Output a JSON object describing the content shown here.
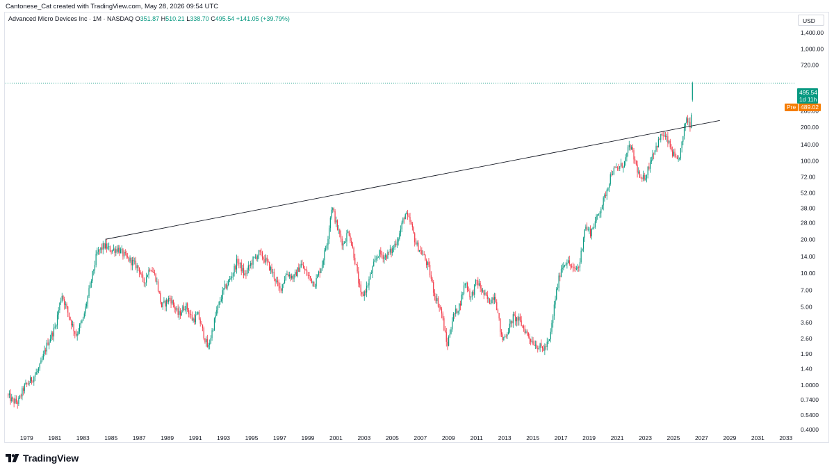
{
  "header": {
    "credit": "Cantonese_Cat created with TradingView.com, May 28, 2026 09:54 UTC",
    "symbol": "Advanced Micro Devices Inc · 1M · NASDAQ",
    "ohlc": {
      "o_label": "O",
      "o_value": "351.87",
      "h_label": "H",
      "h_value": "510.21",
      "l_label": "L",
      "l_value": "338.70",
      "c_label": "C",
      "c_value": "495.54",
      "change": "+141.05 (+39.79%)"
    },
    "currency": "USD"
  },
  "price_tag": {
    "price": "495.54",
    "countdown": "1d 11h"
  },
  "pre_tag": {
    "label": "Pre",
    "price": "489.02"
  },
  "brand": {
    "name": "TradingView"
  },
  "colors": {
    "up": "#089981",
    "down": "#f23645",
    "pre": "#f57c00",
    "trendline": "#131722"
  },
  "chart_data": {
    "type": "candlestick",
    "scale": "log",
    "ylim": [
      0.4,
      2000
    ],
    "xlim": [
      1977.5,
      2033.7
    ],
    "y_ticks": [
      {
        "value": 0.4,
        "label": "0.4000"
      },
      {
        "value": 0.54,
        "label": "0.5400"
      },
      {
        "value": 0.74,
        "label": "0.7400"
      },
      {
        "value": 1.0,
        "label": "1.0000"
      },
      {
        "value": 1.4,
        "label": "1.40"
      },
      {
        "value": 1.9,
        "label": "1.90"
      },
      {
        "value": 2.6,
        "label": "2.60"
      },
      {
        "value": 3.6,
        "label": "3.60"
      },
      {
        "value": 5.0,
        "label": "5.00"
      },
      {
        "value": 7.0,
        "label": "7.00"
      },
      {
        "value": 10,
        "label": "10.00"
      },
      {
        "value": 14,
        "label": "14.00"
      },
      {
        "value": 20,
        "label": "20.00"
      },
      {
        "value": 28,
        "label": "28.00"
      },
      {
        "value": 38,
        "label": "38.00"
      },
      {
        "value": 52,
        "label": "52.00"
      },
      {
        "value": 72,
        "label": "72.00"
      },
      {
        "value": 100,
        "label": "100.00"
      },
      {
        "value": 140,
        "label": "140.00"
      },
      {
        "value": 200,
        "label": "200.00"
      },
      {
        "value": 280,
        "label": "280.00"
      },
      {
        "value": 720,
        "label": "720.00"
      },
      {
        "value": 1000,
        "label": "1,000.00"
      },
      {
        "value": 1400,
        "label": "1,400.00"
      }
    ],
    "x_ticks": [
      "1979",
      "1981",
      "1983",
      "1985",
      "1987",
      "1989",
      "1991",
      "1993",
      "1995",
      "1997",
      "1999",
      "2001",
      "2003",
      "2005",
      "2007",
      "2009",
      "2011",
      "2013",
      "2015",
      "2017",
      "2019",
      "2021",
      "2023",
      "2025",
      "2027",
      "2029",
      "2031",
      "2033"
    ],
    "price_path": [
      [
        1977.6,
        0.82
      ],
      [
        1978.0,
        0.72
      ],
      [
        1978.4,
        0.7
      ],
      [
        1978.8,
        0.95
      ],
      [
        1979.3,
        1.1
      ],
      [
        1979.9,
        1.4
      ],
      [
        1980.5,
        2.4
      ],
      [
        1981.0,
        3.2
      ],
      [
        1981.5,
        6.5
      ],
      [
        1982.0,
        4.2
      ],
      [
        1982.5,
        2.8
      ],
      [
        1983.0,
        3.8
      ],
      [
        1983.5,
        7.5
      ],
      [
        1984.0,
        15.0
      ],
      [
        1984.5,
        17.5
      ],
      [
        1985.0,
        16.0
      ],
      [
        1985.5,
        16.5
      ],
      [
        1986.0,
        14.0
      ],
      [
        1986.5,
        12.5
      ],
      [
        1987.0,
        11.0
      ],
      [
        1987.3,
        8.0
      ],
      [
        1987.8,
        11.5
      ],
      [
        1988.2,
        9.0
      ],
      [
        1988.6,
        5.0
      ],
      [
        1989.2,
        6.0
      ],
      [
        1989.8,
        4.2
      ],
      [
        1990.3,
        5.2
      ],
      [
        1990.8,
        3.8
      ],
      [
        1991.2,
        4.2
      ],
      [
        1991.6,
        2.8
      ],
      [
        1991.9,
        2.1
      ],
      [
        1992.5,
        4.5
      ],
      [
        1993.0,
        7.0
      ],
      [
        1993.5,
        9.0
      ],
      [
        1994.0,
        13.0
      ],
      [
        1994.5,
        9.5
      ],
      [
        1995.0,
        12.5
      ],
      [
        1995.5,
        15.0
      ],
      [
        1996.0,
        13.0
      ],
      [
        1996.5,
        10.0
      ],
      [
        1997.0,
        7.0
      ],
      [
        1997.5,
        10.0
      ],
      [
        1998.0,
        9.0
      ],
      [
        1998.5,
        12.0
      ],
      [
        1999.0,
        9.5
      ],
      [
        1999.5,
        8.0
      ],
      [
        2000.0,
        12.0
      ],
      [
        2000.4,
        20.0
      ],
      [
        2000.7,
        40.0
      ],
      [
        2001.1,
        25.0
      ],
      [
        2001.5,
        18.0
      ],
      [
        2001.9,
        24.0
      ],
      [
        2002.3,
        14.0
      ],
      [
        2002.8,
        6.0
      ],
      [
        2003.2,
        7.5
      ],
      [
        2003.6,
        11.0
      ],
      [
        2004.0,
        15.0
      ],
      [
        2004.5,
        14.0
      ],
      [
        2005.0,
        16.0
      ],
      [
        2005.5,
        22.0
      ],
      [
        2005.9,
        34.0
      ],
      [
        2006.3,
        28.0
      ],
      [
        2006.7,
        18.0
      ],
      [
        2007.2,
        14.5
      ],
      [
        2007.6,
        11.0
      ],
      [
        2008.0,
        6.5
      ],
      [
        2008.5,
        4.5
      ],
      [
        2008.9,
        2.2
      ],
      [
        2009.3,
        4.0
      ],
      [
        2009.8,
        5.2
      ],
      [
        2010.2,
        8.5
      ],
      [
        2010.6,
        6.0
      ],
      [
        2011.0,
        8.5
      ],
      [
        2011.5,
        6.5
      ],
      [
        2011.9,
        5.5
      ],
      [
        2012.3,
        6.5
      ],
      [
        2012.8,
        2.5
      ],
      [
        2013.2,
        3.0
      ],
      [
        2013.6,
        4.0
      ],
      [
        2014.0,
        3.8
      ],
      [
        2014.5,
        3.0
      ],
      [
        2014.9,
        2.5
      ],
      [
        2015.4,
        2.2
      ],
      [
        2015.8,
        2.1
      ],
      [
        2016.2,
        2.5
      ],
      [
        2016.6,
        6.0
      ],
      [
        2017.0,
        11.0
      ],
      [
        2017.4,
        13.0
      ],
      [
        2017.9,
        10.5
      ],
      [
        2018.3,
        11.5
      ],
      [
        2018.7,
        26.0
      ],
      [
        2019.1,
        23.0
      ],
      [
        2019.6,
        32.0
      ],
      [
        2020.1,
        47.0
      ],
      [
        2020.6,
        80.0
      ],
      [
        2021.0,
        85.0
      ],
      [
        2021.5,
        95.0
      ],
      [
        2021.9,
        140.0
      ],
      [
        2022.3,
        95.0
      ],
      [
        2022.7,
        65.0
      ],
      [
        2023.1,
        78.0
      ],
      [
        2023.5,
        115.0
      ],
      [
        2023.9,
        145.0
      ],
      [
        2024.2,
        175.0
      ],
      [
        2024.6,
        150.0
      ],
      [
        2024.9,
        120.0
      ],
      [
        2025.3,
        95.0
      ],
      [
        2025.6,
        140.0
      ],
      [
        2025.9,
        245.0
      ],
      [
        2026.2,
        210.0
      ],
      [
        2026.4,
        495.54
      ]
    ],
    "trendline": {
      "from": [
        1984.6,
        20.0
      ],
      "to": [
        2028.3,
        230.0
      ]
    },
    "last_price": 495.54
  }
}
